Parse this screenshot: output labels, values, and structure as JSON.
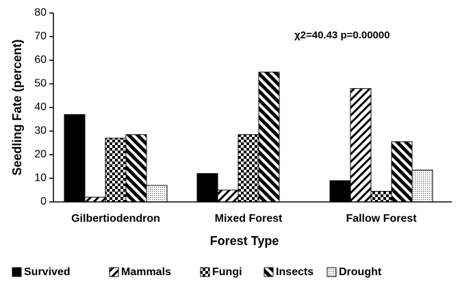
{
  "chart_data": {
    "type": "bar",
    "x_label": "Forest Type",
    "y_label": "Seedling Fate (percent)",
    "annotation": "χ2=40.43 p=0.00000",
    "categories": [
      "Gilbertiodendron",
      "Mixed Forest",
      "Fallow Forest"
    ],
    "series": [
      {
        "name": "Survived",
        "color": "#000000",
        "pattern": "solid",
        "values": [
          37,
          12,
          9
        ]
      },
      {
        "name": "Mammals",
        "color": "#000000",
        "pattern": "hatch",
        "values": [
          2,
          5,
          48
        ]
      },
      {
        "name": "Fungi",
        "color": "#000000",
        "pattern": "checker",
        "values": [
          27,
          28.5,
          4.5
        ]
      },
      {
        "name": "Insects",
        "color": "#000000",
        "pattern": "backslash",
        "values": [
          28.5,
          55,
          25.5
        ]
      },
      {
        "name": "Drought",
        "color": "#000000",
        "pattern": "dots",
        "values": [
          7,
          0,
          13.5
        ]
      }
    ],
    "ylim": [
      0,
      80
    ],
    "yticks": [
      0,
      10,
      20,
      30,
      40,
      50,
      60,
      70,
      80
    ]
  }
}
